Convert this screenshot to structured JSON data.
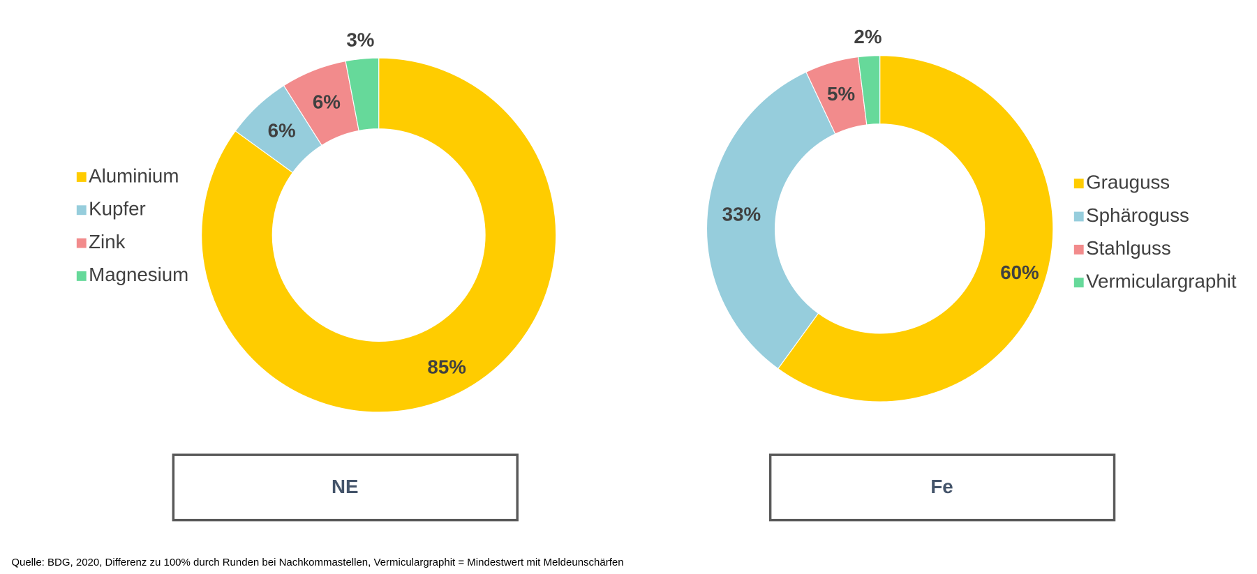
{
  "chart_data": [
    {
      "type": "pie",
      "title": "NE",
      "legend": "left",
      "categories": [
        "Aluminium",
        "Kupfer",
        "Zink",
        "Magnesium"
      ],
      "values": [
        85,
        6,
        6,
        3
      ],
      "value_labels": [
        "85%",
        "6%",
        "6%",
        "3%"
      ],
      "colors": [
        "#ffcc00",
        "#96cddc",
        "#f28b8c",
        "#66d99a"
      ]
    },
    {
      "type": "pie",
      "title": "Fe",
      "legend": "right",
      "categories": [
        "Grauguss",
        "Sphäroguss",
        "Stahlguss",
        "Vermiculargraphit"
      ],
      "values": [
        60,
        33,
        5,
        2
      ],
      "value_labels": [
        "60%",
        "33%",
        "5%",
        "2%"
      ],
      "colors": [
        "#ffcc00",
        "#96cddc",
        "#f28b8c",
        "#66d99a"
      ]
    }
  ],
  "source": "Quelle:  BDG, 2020, Differenz zu 100% durch Runden bei Nachkommastellen, Vermiculargraphit = Mindestwert mit Meldeunschärfen"
}
